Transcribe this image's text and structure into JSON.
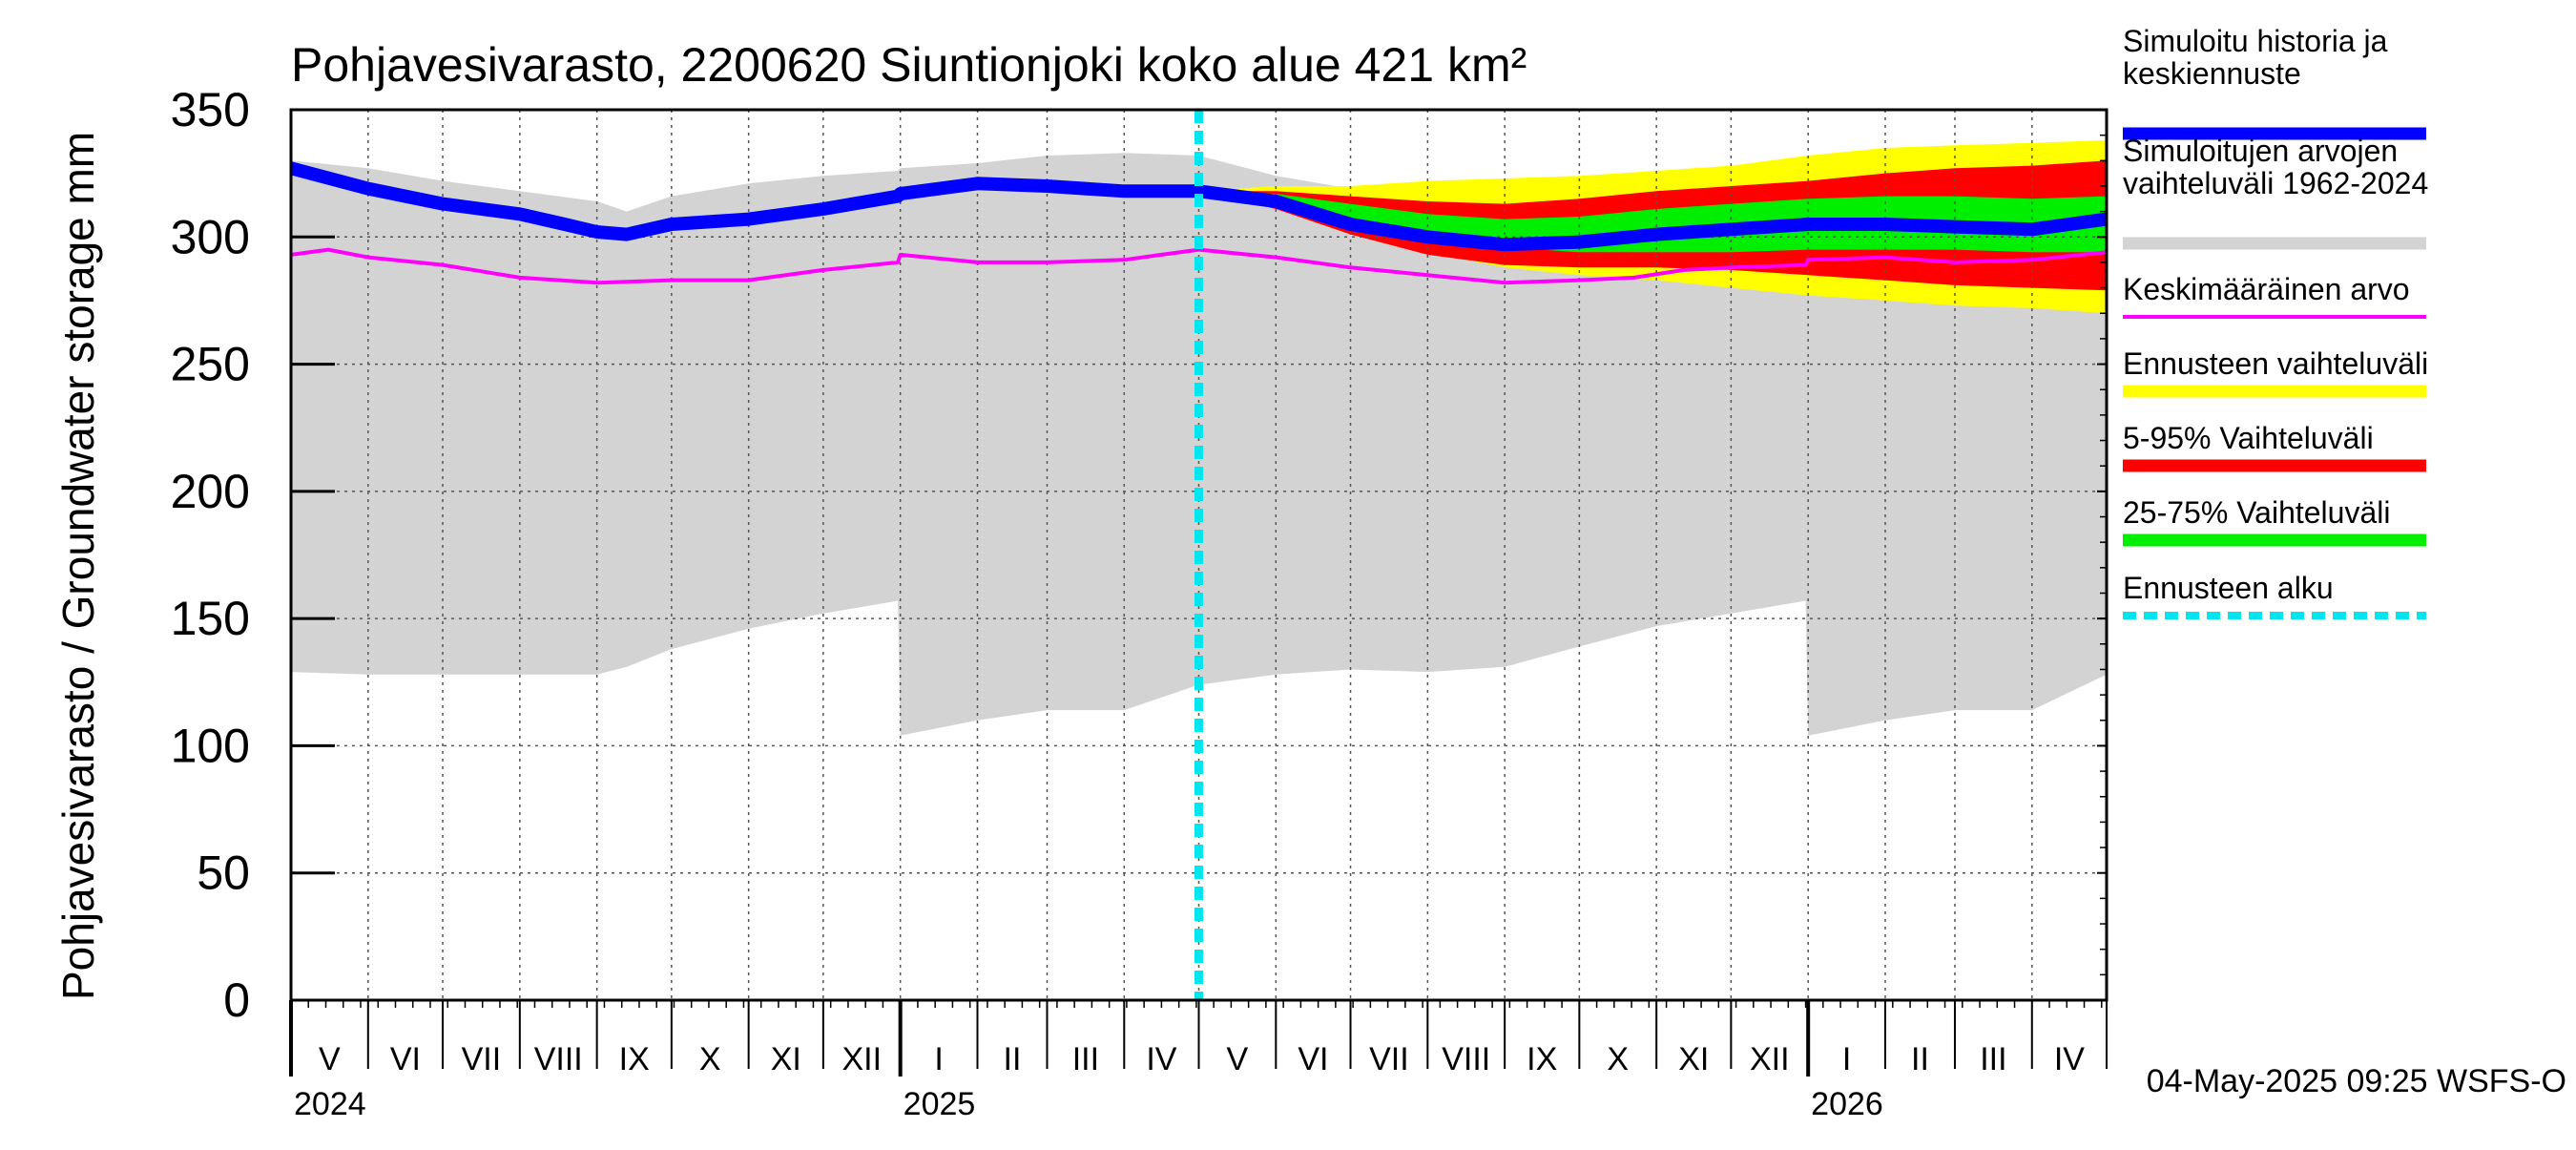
{
  "chart_data": {
    "type": "area",
    "title": "Pohjavesivarasto, 2200620 Siuntionjoki koko alue 421 km²",
    "ylabel": "Pohjavesivarasto / Groundwater storage   mm",
    "ylim": [
      0,
      350
    ],
    "yticks": [
      0,
      50,
      100,
      150,
      200,
      250,
      300,
      350
    ],
    "x_range_days": [
      0,
      730
    ],
    "forecast_start_day": 365,
    "months": [
      {
        "label": "V",
        "start": 0
      },
      {
        "label": "VI",
        "start": 31
      },
      {
        "label": "VII",
        "start": 61
      },
      {
        "label": "VIII",
        "start": 92
      },
      {
        "label": "IX",
        "start": 123
      },
      {
        "label": "X",
        "start": 153
      },
      {
        "label": "XI",
        "start": 184
      },
      {
        "label": "XII",
        "start": 214
      },
      {
        "label": "I",
        "start": 245
      },
      {
        "label": "II",
        "start": 276
      },
      {
        "label": "III",
        "start": 304
      },
      {
        "label": "IV",
        "start": 335
      },
      {
        "label": "V",
        "start": 365
      },
      {
        "label": "VI",
        "start": 396
      },
      {
        "label": "VII",
        "start": 426
      },
      {
        "label": "VIII",
        "start": 457
      },
      {
        "label": "IX",
        "start": 488
      },
      {
        "label": "X",
        "start": 518
      },
      {
        "label": "XI",
        "start": 549
      },
      {
        "label": "XII",
        "start": 579
      },
      {
        "label": "I",
        "start": 610
      },
      {
        "label": "II",
        "start": 641
      },
      {
        "label": "III",
        "start": 669
      },
      {
        "label": "IV",
        "start": 700
      }
    ],
    "years": [
      {
        "label": "2024",
        "day": 0
      },
      {
        "label": "2025",
        "day": 245
      },
      {
        "label": "2026",
        "day": 610
      }
    ],
    "series": [
      {
        "name": "Simuloitujen arvojen vaihteluväli 1962-2024",
        "kind": "band",
        "color": "#d3d3d3",
        "x": [
          0,
          31,
          61,
          92,
          123,
          135,
          153,
          184,
          214,
          244,
          245,
          276,
          304,
          335,
          365,
          396,
          426,
          457,
          488,
          518,
          549,
          579,
          609,
          610,
          641,
          669,
          700,
          730
        ],
        "lower": [
          129,
          128,
          128,
          128,
          128,
          131,
          138,
          146,
          152,
          157,
          104,
          110,
          114,
          114,
          124,
          128,
          130,
          129,
          131,
          139,
          147,
          152,
          157,
          104,
          110,
          114,
          114,
          128
        ],
        "upper": [
          330,
          327,
          322,
          318,
          314,
          310,
          316,
          321,
          324,
          326,
          327,
          329,
          332,
          333,
          332,
          324,
          319,
          314,
          313,
          318,
          322,
          323,
          326,
          327,
          329,
          332,
          333,
          334
        ]
      },
      {
        "name": "Ennusteen vaihteluväli",
        "kind": "band",
        "color": "#ffff00",
        "x": [
          365,
          396,
          426,
          457,
          488,
          518,
          549,
          579,
          610,
          641,
          669,
          700,
          730
        ],
        "lower": [
          318,
          312,
          303,
          294,
          288,
          285,
          283,
          280,
          277,
          275,
          273,
          272,
          270
        ],
        "upper": [
          318,
          320,
          320,
          322,
          323,
          324,
          326,
          328,
          332,
          335,
          336,
          337,
          338
        ]
      },
      {
        "name": "5-95% Vaihteluväli",
        "kind": "band",
        "color": "#ff0000",
        "x": [
          365,
          396,
          426,
          457,
          488,
          518,
          549,
          579,
          610,
          641,
          669,
          700,
          730
        ],
        "lower": [
          318,
          311,
          301,
          293,
          289,
          288,
          288,
          287,
          285,
          283,
          281,
          280,
          279
        ],
        "upper": [
          318,
          318,
          316,
          314,
          313,
          315,
          318,
          320,
          322,
          325,
          327,
          328,
          330
        ]
      },
      {
        "name": "25-75% Vaihteluväli",
        "kind": "band",
        "color": "#00ee00",
        "x": [
          365,
          396,
          426,
          457,
          488,
          518,
          549,
          579,
          610,
          641,
          669,
          700,
          730
        ],
        "lower": [
          318,
          314,
          306,
          300,
          296,
          294,
          294,
          294,
          295,
          295,
          295,
          294,
          294
        ],
        "upper": [
          318,
          317,
          313,
          309,
          307,
          308,
          311,
          313,
          315,
          316,
          316,
          315,
          316
        ]
      },
      {
        "name": "Keskimääräinen arvo",
        "kind": "line",
        "color": "#ff00ff",
        "x": [
          0,
          15,
          31,
          61,
          92,
          123,
          153,
          184,
          214,
          244,
          245,
          276,
          304,
          335,
          350,
          365,
          396,
          426,
          457,
          488,
          518,
          540,
          560,
          579,
          609,
          610,
          641,
          669,
          700,
          730
        ],
        "values": [
          293,
          295,
          292,
          289,
          284,
          282,
          283,
          283,
          287,
          290,
          293,
          290,
          290,
          291,
          293,
          295,
          292,
          288,
          285,
          282,
          283,
          284,
          287,
          288,
          289,
          291,
          292,
          290,
          291,
          294
        ]
      },
      {
        "name": "Simuloitu historia ja keskiennuste",
        "kind": "line",
        "color": "#0000ff",
        "x": [
          0,
          31,
          61,
          92,
          110,
          123,
          135,
          153,
          184,
          214,
          244,
          245,
          276,
          304,
          335,
          365,
          396,
          426,
          457,
          488,
          518,
          549,
          579,
          610,
          641,
          669,
          700,
          730
        ],
        "values": [
          327,
          319,
          313,
          309,
          305,
          302,
          301,
          305,
          307,
          311,
          316,
          317,
          321,
          320,
          318,
          318,
          314,
          305,
          300,
          297,
          298,
          301,
          303,
          305,
          305,
          304,
          303,
          307
        ]
      }
    ],
    "legend": [
      {
        "label": "Simuloitu historia ja keskiennuste",
        "color": "#0000ff",
        "style": "thick"
      },
      {
        "label": "Simuloitujen arvojen vaihteluväli 1962-2024",
        "color": "#d3d3d3",
        "style": "thick"
      },
      {
        "label": "Keskimääräinen arvo",
        "color": "#ff00ff",
        "style": "thin"
      },
      {
        "label": "Ennusteen vaihteluväli",
        "color": "#ffff00",
        "style": "thick"
      },
      {
        "label": "5-95% Vaihteluväli",
        "color": "#ff0000",
        "style": "thick"
      },
      {
        "label": "25-75% Vaihteluväli",
        "color": "#00ee00",
        "style": "thick"
      },
      {
        "label": "Ennusteen alku",
        "color": "#00e5ee",
        "style": "dashed"
      }
    ],
    "legend_position": "right",
    "footer": "04-May-2025 09:25 WSFS-O"
  }
}
